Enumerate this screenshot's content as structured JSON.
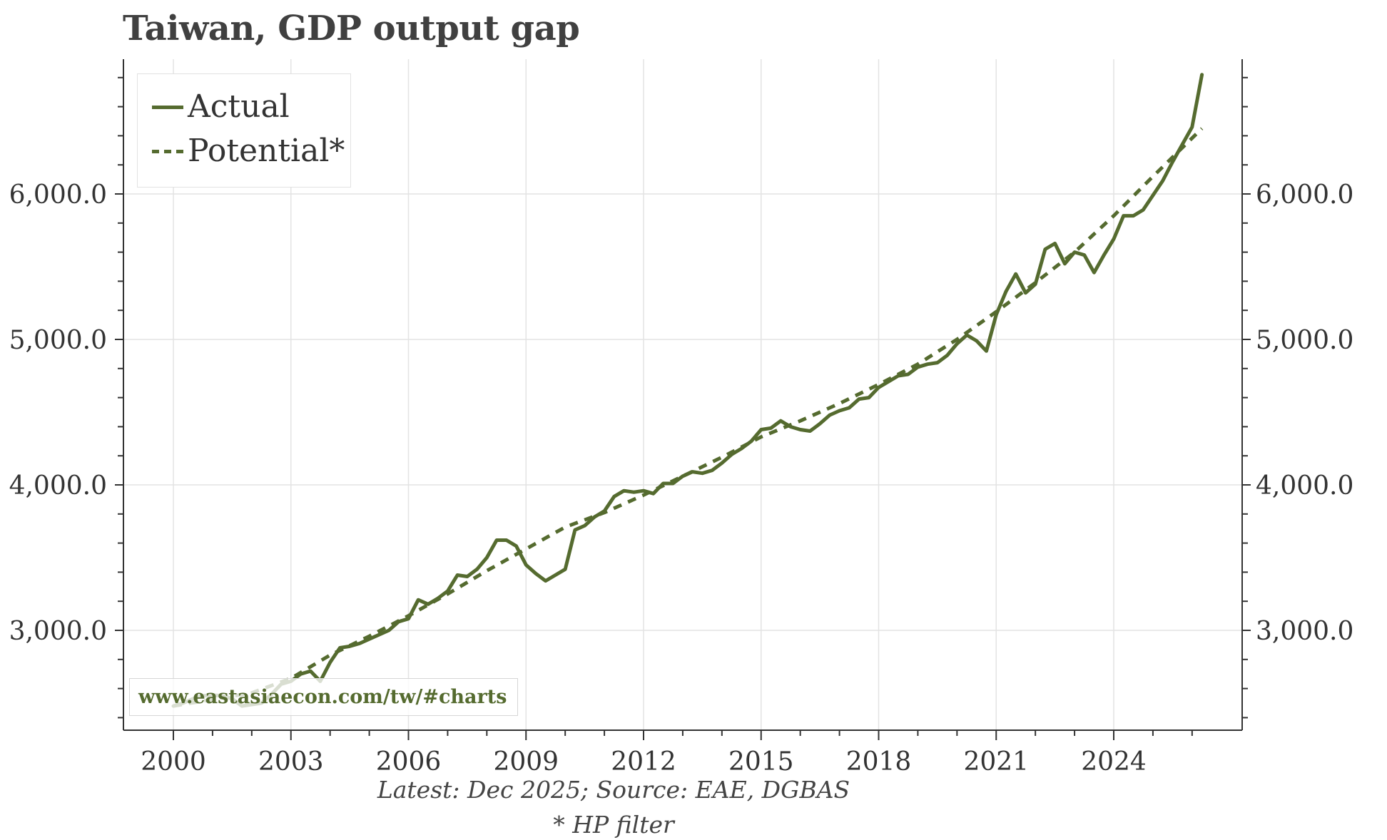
{
  "title": "Taiwan, GDP output gap",
  "footer": {
    "source": "Latest: Dec 2025; Source: EAE, DGBAS",
    "note": "* HP filter"
  },
  "watermark": "www.eastasiaecon.com/tw/#charts",
  "legend": [
    {
      "label": "Actual",
      "style": "solid"
    },
    {
      "label": "Potential*",
      "style": "dashed"
    }
  ],
  "colors": {
    "series": "#556b2f",
    "grid": "#e3e3e3",
    "axis": "#333333"
  },
  "chart_data": {
    "type": "line",
    "xlim": [
      2000,
      2026.5
    ],
    "ylim": [
      2380,
      6930
    ],
    "x_ticks": [
      2000,
      2003,
      2006,
      2009,
      2012,
      2015,
      2018,
      2021,
      2024
    ],
    "x_tick_labels": [
      "2000",
      "2003",
      "2006",
      "2009",
      "2012",
      "2015",
      "2018",
      "2021",
      "2024"
    ],
    "y_ticks": [
      3000,
      4000,
      5000,
      6000
    ],
    "y_tick_labels": [
      "3,000.0",
      "4,000.0",
      "5,000.0",
      "6,000.0"
    ],
    "grid": true,
    "legend_position": "top-left",
    "series": [
      {
        "name": "Actual",
        "style": "solid",
        "points": [
          [
            2000.0,
            2480
          ],
          [
            2000.25,
            2500
          ],
          [
            2000.5,
            2530
          ],
          [
            2000.75,
            2550
          ],
          [
            2001.0,
            2555
          ],
          [
            2001.25,
            2550
          ],
          [
            2001.5,
            2530
          ],
          [
            2001.75,
            2480
          ],
          [
            2002.0,
            2490
          ],
          [
            2002.25,
            2500
          ],
          [
            2002.5,
            2560
          ],
          [
            2002.75,
            2630
          ],
          [
            2003.0,
            2650
          ],
          [
            2003.25,
            2700
          ],
          [
            2003.5,
            2720
          ],
          [
            2003.75,
            2650
          ],
          [
            2004.0,
            2780
          ],
          [
            2004.25,
            2880
          ],
          [
            2004.5,
            2890
          ],
          [
            2004.75,
            2910
          ],
          [
            2005.0,
            2940
          ],
          [
            2005.25,
            2970
          ],
          [
            2005.5,
            3000
          ],
          [
            2005.75,
            3060
          ],
          [
            2006.0,
            3080
          ],
          [
            2006.25,
            3210
          ],
          [
            2006.5,
            3180
          ],
          [
            2006.75,
            3220
          ],
          [
            2007.0,
            3270
          ],
          [
            2007.25,
            3380
          ],
          [
            2007.5,
            3370
          ],
          [
            2007.75,
            3420
          ],
          [
            2008.0,
            3500
          ],
          [
            2008.25,
            3620
          ],
          [
            2008.5,
            3620
          ],
          [
            2008.75,
            3580
          ],
          [
            2009.0,
            3450
          ],
          [
            2009.25,
            3390
          ],
          [
            2009.5,
            3340
          ],
          [
            2009.75,
            3380
          ],
          [
            2010.0,
            3420
          ],
          [
            2010.25,
            3690
          ],
          [
            2010.5,
            3720
          ],
          [
            2010.75,
            3780
          ],
          [
            2011.0,
            3820
          ],
          [
            2011.25,
            3920
          ],
          [
            2011.5,
            3960
          ],
          [
            2011.75,
            3950
          ],
          [
            2012.0,
            3960
          ],
          [
            2012.25,
            3940
          ],
          [
            2012.5,
            4010
          ],
          [
            2012.75,
            4010
          ],
          [
            2013.0,
            4060
          ],
          [
            2013.25,
            4090
          ],
          [
            2013.5,
            4080
          ],
          [
            2013.75,
            4100
          ],
          [
            2014.0,
            4150
          ],
          [
            2014.25,
            4210
          ],
          [
            2014.5,
            4250
          ],
          [
            2014.75,
            4300
          ],
          [
            2015.0,
            4380
          ],
          [
            2015.25,
            4390
          ],
          [
            2015.5,
            4440
          ],
          [
            2015.75,
            4400
          ],
          [
            2016.0,
            4380
          ],
          [
            2016.25,
            4370
          ],
          [
            2016.5,
            4420
          ],
          [
            2016.75,
            4480
          ],
          [
            2017.0,
            4510
          ],
          [
            2017.25,
            4530
          ],
          [
            2017.5,
            4590
          ],
          [
            2017.75,
            4600
          ],
          [
            2018.0,
            4670
          ],
          [
            2018.25,
            4710
          ],
          [
            2018.5,
            4750
          ],
          [
            2018.75,
            4760
          ],
          [
            2019.0,
            4810
          ],
          [
            2019.25,
            4830
          ],
          [
            2019.5,
            4840
          ],
          [
            2019.75,
            4890
          ],
          [
            2020.0,
            4970
          ],
          [
            2020.25,
            5030
          ],
          [
            2020.5,
            4990
          ],
          [
            2020.75,
            4920
          ],
          [
            2021.0,
            5170
          ],
          [
            2021.25,
            5330
          ],
          [
            2021.5,
            5450
          ],
          [
            2021.75,
            5320
          ],
          [
            2022.0,
            5380
          ],
          [
            2022.25,
            5620
          ],
          [
            2022.5,
            5660
          ],
          [
            2022.75,
            5520
          ],
          [
            2023.0,
            5600
          ],
          [
            2023.25,
            5580
          ],
          [
            2023.5,
            5460
          ],
          [
            2023.75,
            5580
          ],
          [
            2024.0,
            5690
          ],
          [
            2024.25,
            5850
          ],
          [
            2024.5,
            5850
          ],
          [
            2024.75,
            5890
          ],
          [
            2025.0,
            5990
          ],
          [
            2025.25,
            6090
          ],
          [
            2025.5,
            6220
          ],
          [
            2025.75,
            6340
          ],
          [
            2026.0,
            6460
          ],
          [
            2026.25,
            6820
          ]
        ]
      },
      {
        "name": "Potential*",
        "style": "dashed",
        "points": [
          [
            2000.0,
            2480
          ],
          [
            2002.0,
            2570
          ],
          [
            2003.0,
            2670
          ],
          [
            2004.0,
            2830
          ],
          [
            2005.0,
            2960
          ],
          [
            2006.0,
            3100
          ],
          [
            2007.0,
            3250
          ],
          [
            2008.0,
            3410
          ],
          [
            2009.0,
            3560
          ],
          [
            2010.0,
            3710
          ],
          [
            2011.0,
            3810
          ],
          [
            2012.0,
            3930
          ],
          [
            2013.0,
            4060
          ],
          [
            2014.0,
            4190
          ],
          [
            2015.0,
            4330
          ],
          [
            2016.0,
            4440
          ],
          [
            2017.0,
            4560
          ],
          [
            2018.0,
            4690
          ],
          [
            2019.0,
            4830
          ],
          [
            2020.0,
            5000
          ],
          [
            2021.0,
            5190
          ],
          [
            2022.0,
            5390
          ],
          [
            2023.0,
            5600
          ],
          [
            2024.0,
            5850
          ],
          [
            2025.0,
            6120
          ],
          [
            2026.25,
            6450
          ]
        ]
      }
    ]
  }
}
